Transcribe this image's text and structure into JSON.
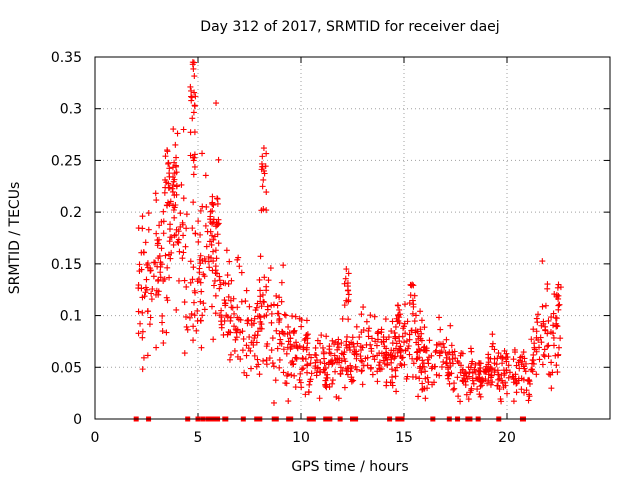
{
  "chart_data": {
    "type": "scatter",
    "title": "Day 312 of 2017, SRMTID for receiver daej",
    "xlabel": "GPS time / hours",
    "ylabel": "SRMTID / TECUs",
    "xlim": [
      0,
      25
    ],
    "ylim": [
      0,
      0.35
    ],
    "xticks": [
      0,
      5,
      10,
      15,
      20
    ],
    "xtick_labels": [
      "0",
      "5",
      "10",
      "15",
      "20"
    ],
    "yticks": [
      0,
      0.05,
      0.1,
      0.15,
      0.2,
      0.25,
      0.3,
      0.35
    ],
    "ytick_labels": [
      "0",
      "0.05",
      "0.1",
      "0.15",
      "0.2",
      "0.25",
      "0.3",
      "0.35"
    ],
    "grid": true,
    "marker": "+",
    "color": "#ff0000",
    "series": [
      {
        "name": "SRMTID",
        "profile": [
          {
            "x": 2.1,
            "y": 0.125
          },
          {
            "x": 2.6,
            "y": 0.135
          },
          {
            "x": 3.0,
            "y": 0.145
          },
          {
            "x": 3.3,
            "y": 0.165
          },
          {
            "x": 3.6,
            "y": 0.175
          },
          {
            "x": 4.0,
            "y": 0.18
          },
          {
            "x": 4.4,
            "y": 0.155
          },
          {
            "x": 4.7,
            "y": 0.14
          },
          {
            "x": 5.0,
            "y": 0.15
          },
          {
            "x": 5.5,
            "y": 0.16
          },
          {
            "x": 6.0,
            "y": 0.15
          },
          {
            "x": 6.5,
            "y": 0.105
          },
          {
            "x": 7.0,
            "y": 0.1
          },
          {
            "x": 7.5,
            "y": 0.09
          },
          {
            "x": 8.0,
            "y": 0.085
          },
          {
            "x": 8.3,
            "y": 0.12
          },
          {
            "x": 8.6,
            "y": 0.09
          },
          {
            "x": 9.0,
            "y": 0.08
          },
          {
            "x": 9.5,
            "y": 0.075
          },
          {
            "x": 10.0,
            "y": 0.065
          },
          {
            "x": 10.5,
            "y": 0.05
          },
          {
            "x": 11.0,
            "y": 0.05
          },
          {
            "x": 11.5,
            "y": 0.055
          },
          {
            "x": 12.0,
            "y": 0.06
          },
          {
            "x": 12.5,
            "y": 0.055
          },
          {
            "x": 13.0,
            "y": 0.065
          },
          {
            "x": 13.5,
            "y": 0.07
          },
          {
            "x": 14.0,
            "y": 0.06
          },
          {
            "x": 14.5,
            "y": 0.06
          },
          {
            "x": 15.0,
            "y": 0.075
          },
          {
            "x": 15.5,
            "y": 0.07
          },
          {
            "x": 16.0,
            "y": 0.06
          },
          {
            "x": 16.5,
            "y": 0.055
          },
          {
            "x": 17.0,
            "y": 0.06
          },
          {
            "x": 17.5,
            "y": 0.05
          },
          {
            "x": 18.0,
            "y": 0.045
          },
          {
            "x": 18.5,
            "y": 0.04
          },
          {
            "x": 19.0,
            "y": 0.045
          },
          {
            "x": 19.5,
            "y": 0.055
          },
          {
            "x": 20.0,
            "y": 0.05
          },
          {
            "x": 20.5,
            "y": 0.045
          },
          {
            "x": 21.0,
            "y": 0.045
          },
          {
            "x": 21.5,
            "y": 0.075
          },
          {
            "x": 22.0,
            "y": 0.085
          },
          {
            "x": 22.6,
            "y": 0.075
          }
        ],
        "point_count": 1100
      }
    ],
    "spikes": [
      {
        "x": 4.75,
        "y_min": 0.24,
        "y_max": 0.345
      },
      {
        "x": 3.5,
        "y_min": 0.2,
        "y_max": 0.26
      },
      {
        "x": 3.9,
        "y_min": 0.19,
        "y_max": 0.265
      },
      {
        "x": 8.2,
        "y_min": 0.2,
        "y_max": 0.262
      },
      {
        "x": 5.7,
        "y_min": 0.18,
        "y_max": 0.215
      },
      {
        "x": 12.2,
        "y_min": 0.1,
        "y_max": 0.145
      },
      {
        "x": 14.7,
        "y_min": 0.09,
        "y_max": 0.11
      },
      {
        "x": 15.4,
        "y_min": 0.11,
        "y_max": 0.13
      },
      {
        "x": 22.5,
        "y_min": 0.1,
        "y_max": 0.13
      }
    ],
    "zero_markers_x": [
      2.0,
      2.6,
      4.5,
      5.0,
      5.25,
      5.5,
      5.7,
      5.8,
      5.95,
      6.3,
      6.35,
      7.2,
      7.85,
      8.0,
      8.7,
      8.8,
      9.4,
      9.45,
      9.5,
      10.4,
      10.5,
      10.6,
      11.2,
      11.4,
      11.9,
      12.5,
      12.55,
      12.6,
      12.65,
      14.3,
      14.7,
      14.9,
      16.4,
      17.2,
      17.6,
      18.1,
      18.2,
      18.6,
      19.6,
      20.75,
      20.8
    ]
  }
}
